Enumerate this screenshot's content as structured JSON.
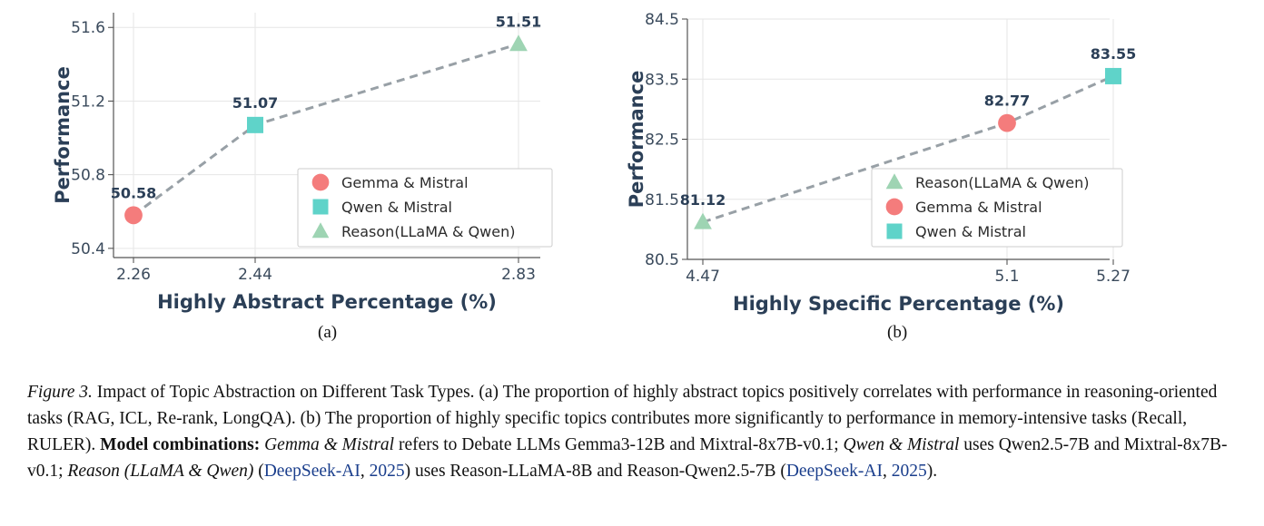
{
  "chart_data": [
    {
      "type": "line",
      "title": "",
      "xlabel": "Highly Abstract Percentage (%)",
      "ylabel": "Performance",
      "x_ticks": [
        "2.26",
        "2.44",
        "2.83"
      ],
      "y_ticks": [
        "50.4",
        "50.8",
        "51.2",
        "51.6"
      ],
      "ylim": [
        50.35,
        51.68
      ],
      "points": [
        {
          "x": 2.26,
          "y": 50.58,
          "label": "50.58",
          "series": "Gemma & Mistral",
          "marker": "circle",
          "color": "#f47c7c"
        },
        {
          "x": 2.44,
          "y": 51.07,
          "label": "51.07",
          "series": "Qwen & Mistral",
          "marker": "square",
          "color": "#5fd3c9"
        },
        {
          "x": 2.83,
          "y": 51.51,
          "label": "51.51",
          "series": "Reason(LLaMA & Qwen)",
          "marker": "triangle",
          "color": "#9ed4b3"
        }
      ],
      "legend": [
        "Gemma & Mistral",
        "Qwen & Mistral",
        "Reason(LLaMA & Qwen)"
      ],
      "legend_position": "bottom-right",
      "grid": true
    },
    {
      "type": "line",
      "title": "",
      "xlabel": "Highly Specific Percentage (%)",
      "ylabel": "Performance",
      "x_ticks": [
        "4.47",
        "5.1",
        "5.27"
      ],
      "y_ticks": [
        "80.5",
        "81.5",
        "82.5",
        "83.5",
        "84.5"
      ],
      "ylim": [
        80.5,
        84.5
      ],
      "points": [
        {
          "x": 4.47,
          "y": 81.12,
          "label": "81.12",
          "series": "Reason(LLaMA & Qwen)",
          "marker": "triangle",
          "color": "#9ed4b3"
        },
        {
          "x": 5.1,
          "y": 82.77,
          "label": "82.77",
          "series": "Gemma & Mistral",
          "marker": "circle",
          "color": "#f47c7c"
        },
        {
          "x": 5.27,
          "y": 83.55,
          "label": "83.55",
          "series": "Qwen & Mistral",
          "marker": "square",
          "color": "#5fd3c9"
        }
      ],
      "legend": [
        "Reason(LLaMA & Qwen)",
        "Gemma & Mistral",
        "Qwen & Mistral"
      ],
      "legend_position": "bottom-right",
      "grid": true
    }
  ],
  "subfigure_labels": [
    "(a)",
    "(b)"
  ],
  "caption": {
    "fig_label": "Figure 3.",
    "text1": " Impact of Topic Abstraction on Different Task Types. (a) The proportion of highly abstract topics positively correlates with performance in reasoning-oriented tasks (RAG, ICL, Re-rank, LongQA). (b) The proportion of highly specific topics contributes more significantly to performance in memory-intensive tasks (Recall, RULER). ",
    "bold": "Model combinations:",
    "sp": " ",
    "i1": "Gemma & Mistral",
    "t2": " refers to Debate LLMs Gemma3-12B and Mixtral-8x7B-v0.1; ",
    "i2": "Qwen & Mistral",
    "t3": " uses Qwen2.5-7B and Mixtral-8x7B-v0.1; ",
    "i3": "Reason (LLaMA & Qwen)",
    "t4": " (",
    "cite1": "DeepSeek-AI",
    "t5": ", ",
    "cite1_year": "2025",
    "t6": ") uses Reason-LLaMA-8B and Reason-Qwen2.5-7B (",
    "cite2": "DeepSeek-AI",
    "t7": ", ",
    "cite2_year": "2025",
    "t8": ")."
  }
}
